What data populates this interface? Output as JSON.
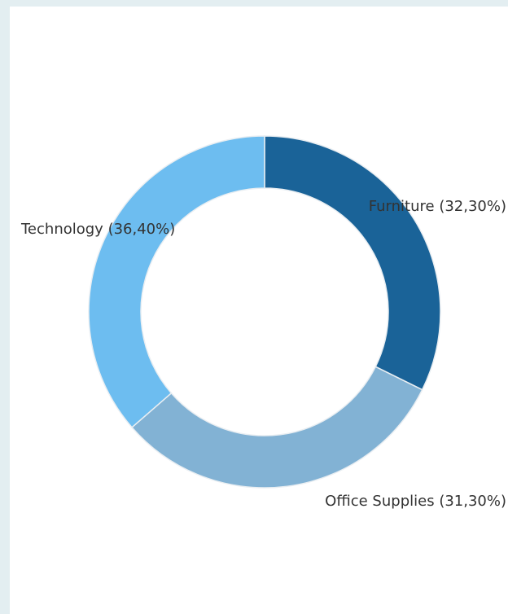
{
  "chart_data": {
    "type": "donut",
    "categories": [
      "Furniture",
      "Office Supplies",
      "Technology"
    ],
    "values": [
      32.3,
      31.3,
      36.4
    ],
    "value_labels": [
      "(32,30%)",
      "(31,30%)",
      "(36,40%)"
    ],
    "colors": [
      "#1a6398",
      "#82b2d4",
      "#6dbdf0"
    ]
  }
}
